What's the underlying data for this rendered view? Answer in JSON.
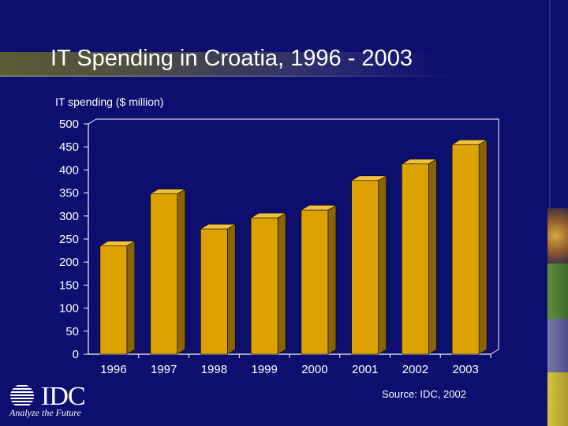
{
  "slide": {
    "title": "IT Spending in Croatia, 1996 - 2003",
    "source": "Source: IDC, 2002"
  },
  "logo": {
    "name": "IDC",
    "tagline": "Analyze the Future"
  },
  "colors": {
    "background": "#0d0f6e",
    "bar_front": "#dca300",
    "bar_side": "#8a6400",
    "bar_top": "#f0c040",
    "axis": "#ffffff"
  },
  "chart_data": {
    "type": "bar",
    "title": "",
    "ylabel": "IT spending ($ million)",
    "xlabel": "",
    "categories": [
      "1996",
      "1997",
      "1998",
      "1999",
      "2000",
      "2001",
      "2002",
      "2003"
    ],
    "values": [
      235,
      348,
      272,
      296,
      313,
      377,
      413,
      455
    ],
    "ylim": [
      0,
      500
    ],
    "yticks": [
      0,
      50,
      100,
      150,
      200,
      250,
      300,
      350,
      400,
      450,
      500
    ],
    "grid": false,
    "legend": "none",
    "style": "3d"
  }
}
